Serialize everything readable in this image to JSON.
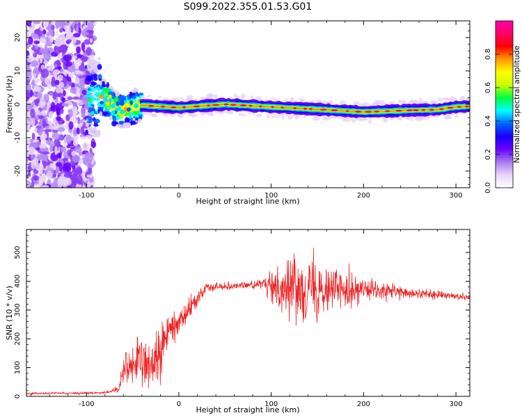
{
  "title": "S099.2022.355.01.53.G01",
  "charts": [
    {
      "type": "heatmap",
      "xlabel": "Height of straight line (km)",
      "ylabel": "Frequency (Hz)",
      "xlim": [
        -165,
        315
      ],
      "ylim": [
        -25,
        25
      ],
      "x_ticks": [
        -100,
        0,
        100,
        200,
        300
      ],
      "y_ticks": [
        -20,
        -10,
        0,
        10,
        20
      ],
      "colorbar": {
        "label": "Normalized spectral amplitude",
        "ticks": [
          0.0,
          0.2,
          0.4,
          0.6,
          0.8
        ],
        "range": [
          0,
          1
        ],
        "colormap": [
          "#ffffff",
          "#e8d5f7",
          "#a97cf0",
          "#6a00ff",
          "#1800ff",
          "#0066ff",
          "#00ffff",
          "#00ff44",
          "#c8ff00",
          "#ffff00",
          "#ff9900",
          "#ff0000",
          "#ff0066",
          "#ff00aa"
        ]
      },
      "ridge": [
        {
          "x": -90,
          "y": 1.5
        },
        {
          "x": -80,
          "y": 2.0
        },
        {
          "x": -70,
          "y": -1.0
        },
        {
          "x": -60,
          "y": -2.0
        },
        {
          "x": -50,
          "y": -1.0
        },
        {
          "x": -40,
          "y": -0.3
        },
        {
          "x": 0,
          "y": -1.0
        },
        {
          "x": 50,
          "y": 0.0
        },
        {
          "x": 100,
          "y": -0.8
        },
        {
          "x": 150,
          "y": -1.5
        },
        {
          "x": 200,
          "y": -2.3
        },
        {
          "x": 250,
          "y": -1.8
        },
        {
          "x": 280,
          "y": -1.6
        },
        {
          "x": 300,
          "y": -0.8
        },
        {
          "x": 315,
          "y": -0.6
        }
      ],
      "noise_region": [
        -165,
        -100
      ]
    },
    {
      "type": "line",
      "xlabel": "Height of straight line (km)",
      "ylabel": "SNR (10 * v/v)",
      "xlim": [
        -165,
        315
      ],
      "ylim": [
        0,
        580
      ],
      "x_ticks": [
        -100,
        0,
        100,
        200,
        300
      ],
      "y_ticks": [
        0,
        100,
        200,
        300,
        400,
        500
      ],
      "color": "#ee2222",
      "envelope": [
        {
          "x": -165,
          "mean": 10,
          "amp": 5
        },
        {
          "x": -80,
          "mean": 12,
          "amp": 6
        },
        {
          "x": -65,
          "mean": 25,
          "amp": 15
        },
        {
          "x": -60,
          "mean": 100,
          "amp": 110
        },
        {
          "x": -45,
          "mean": 120,
          "amp": 110
        },
        {
          "x": -35,
          "mean": 100,
          "amp": 100
        },
        {
          "x": -20,
          "mean": 150,
          "amp": 160
        },
        {
          "x": -10,
          "mean": 230,
          "amp": 80
        },
        {
          "x": 0,
          "mean": 260,
          "amp": 60
        },
        {
          "x": 15,
          "mean": 320,
          "amp": 50
        },
        {
          "x": 30,
          "mean": 380,
          "amp": 20
        },
        {
          "x": 90,
          "mean": 390,
          "amp": 20
        },
        {
          "x": 100,
          "mean": 380,
          "amp": 100
        },
        {
          "x": 140,
          "mean": 380,
          "amp": 170
        },
        {
          "x": 170,
          "mean": 380,
          "amp": 110
        },
        {
          "x": 200,
          "mean": 370,
          "amp": 60
        },
        {
          "x": 240,
          "mean": 360,
          "amp": 30
        },
        {
          "x": 315,
          "mean": 345,
          "amp": 15
        }
      ]
    }
  ]
}
